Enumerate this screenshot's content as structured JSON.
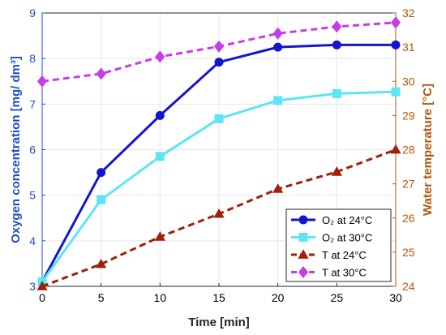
{
  "chart_data": {
    "type": "line",
    "xlabel": "Time [min]",
    "ylabel_left": "Oxygen concentration [mg/ dm³]",
    "ylabel_right": "Water temperature [°C]",
    "x": [
      0,
      5,
      10,
      15,
      20,
      25,
      30
    ],
    "xlim": [
      0,
      30
    ],
    "ylim_left": [
      3,
      9
    ],
    "ylim_right": [
      24,
      32
    ],
    "x_ticks": [
      "0",
      "5",
      "10",
      "15",
      "20",
      "25",
      "30"
    ],
    "y_left_ticks": [
      "3",
      "4",
      "5",
      "6",
      "7",
      "8",
      "9"
    ],
    "y_right_ticks": [
      "24",
      "25",
      "26",
      "27",
      "28",
      "29",
      "30",
      "31",
      "32"
    ],
    "grid": true,
    "legend_position": "bottom-right",
    "left_axis_color": "#1F4FC8",
    "right_axis_color": "#B8540A",
    "series": [
      {
        "name": "O₂ at 24°C",
        "axis": "left",
        "values": [
          3.1,
          5.5,
          6.75,
          7.92,
          8.25,
          8.3,
          8.3
        ],
        "color": "#1515D0",
        "style": "solid",
        "marker": "circle"
      },
      {
        "name": "O₂ at 30°C",
        "axis": "left",
        "values": [
          3.1,
          4.9,
          5.85,
          6.68,
          7.08,
          7.23,
          7.27
        ],
        "color": "#5CE6F5",
        "style": "solid",
        "marker": "square"
      },
      {
        "name": "T at 24°C",
        "axis": "right",
        "values": [
          24.0,
          24.65,
          25.45,
          26.12,
          26.85,
          27.35,
          28.0
        ],
        "color": "#A0200A",
        "style": "dashed",
        "marker": "triangle"
      },
      {
        "name": "T at 30°C",
        "axis": "right",
        "values": [
          30.0,
          30.22,
          30.72,
          31.02,
          31.4,
          31.6,
          31.72
        ],
        "color": "#C83CE8",
        "style": "dashed",
        "marker": "diamond"
      }
    ]
  }
}
